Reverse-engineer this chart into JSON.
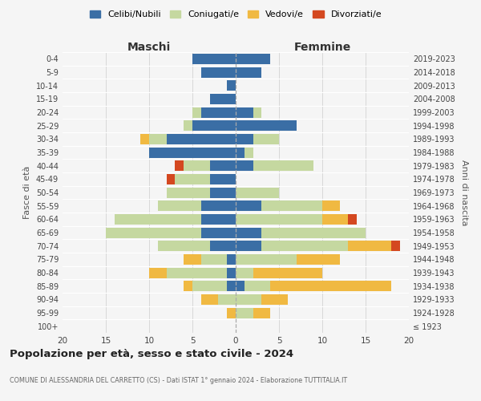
{
  "age_groups": [
    "100+",
    "95-99",
    "90-94",
    "85-89",
    "80-84",
    "75-79",
    "70-74",
    "65-69",
    "60-64",
    "55-59",
    "50-54",
    "45-49",
    "40-44",
    "35-39",
    "30-34",
    "25-29",
    "20-24",
    "15-19",
    "10-14",
    "5-9",
    "0-4"
  ],
  "birth_years": [
    "≤ 1923",
    "1924-1928",
    "1929-1933",
    "1934-1938",
    "1939-1943",
    "1944-1948",
    "1949-1953",
    "1954-1958",
    "1959-1963",
    "1964-1968",
    "1969-1973",
    "1974-1978",
    "1979-1983",
    "1984-1988",
    "1989-1993",
    "1994-1998",
    "1999-2003",
    "2004-2008",
    "2009-2013",
    "2014-2018",
    "2019-2023"
  ],
  "maschi": {
    "celibi": [
      0,
      0,
      0,
      1,
      1,
      1,
      3,
      4,
      4,
      4,
      3,
      3,
      3,
      10,
      8,
      5,
      4,
      3,
      1,
      4,
      5
    ],
    "coniugati": [
      0,
      0,
      2,
      4,
      7,
      3,
      6,
      11,
      10,
      5,
      5,
      4,
      3,
      0,
      2,
      1,
      1,
      0,
      0,
      0,
      0
    ],
    "vedovi": [
      0,
      1,
      2,
      1,
      2,
      2,
      0,
      0,
      0,
      0,
      0,
      0,
      0,
      0,
      1,
      0,
      0,
      0,
      0,
      0,
      0
    ],
    "divorziati": [
      0,
      0,
      0,
      0,
      0,
      0,
      0,
      0,
      0,
      0,
      0,
      1,
      1,
      0,
      0,
      0,
      0,
      0,
      0,
      0,
      0
    ]
  },
  "femmine": {
    "nubili": [
      0,
      0,
      0,
      1,
      0,
      0,
      3,
      3,
      0,
      3,
      0,
      0,
      2,
      1,
      2,
      7,
      2,
      0,
      0,
      3,
      4
    ],
    "coniugate": [
      0,
      2,
      3,
      3,
      2,
      7,
      10,
      12,
      10,
      7,
      5,
      0,
      7,
      1,
      3,
      0,
      1,
      0,
      0,
      0,
      0
    ],
    "vedove": [
      0,
      2,
      3,
      14,
      8,
      5,
      5,
      0,
      3,
      2,
      0,
      0,
      0,
      0,
      0,
      0,
      0,
      0,
      0,
      0,
      0
    ],
    "divorziate": [
      0,
      0,
      0,
      0,
      0,
      0,
      1,
      0,
      1,
      0,
      0,
      0,
      0,
      0,
      0,
      0,
      0,
      0,
      0,
      0,
      0
    ]
  },
  "colors": {
    "celibi": "#3a6ea5",
    "coniugati": "#c5d8a0",
    "vedovi": "#f0b942",
    "divorziati": "#d44820"
  },
  "title": "Popolazione per età, sesso e stato civile - 2024",
  "subtitle": "COMUNE DI ALESSANDRIA DEL CARRETTO (CS) - Dati ISTAT 1° gennaio 2024 - Elaborazione TUTTITALIA.IT",
  "xlabel_left": "Maschi",
  "xlabel_right": "Femmine",
  "ylabel_left": "Fasce di età",
  "ylabel_right": "Anni di nascita",
  "xlim": 20,
  "legend_labels": [
    "Celibi/Nubili",
    "Coniugati/e",
    "Vedovi/e",
    "Divorziati/e"
  ],
  "bg_color": "#f5f5f5"
}
